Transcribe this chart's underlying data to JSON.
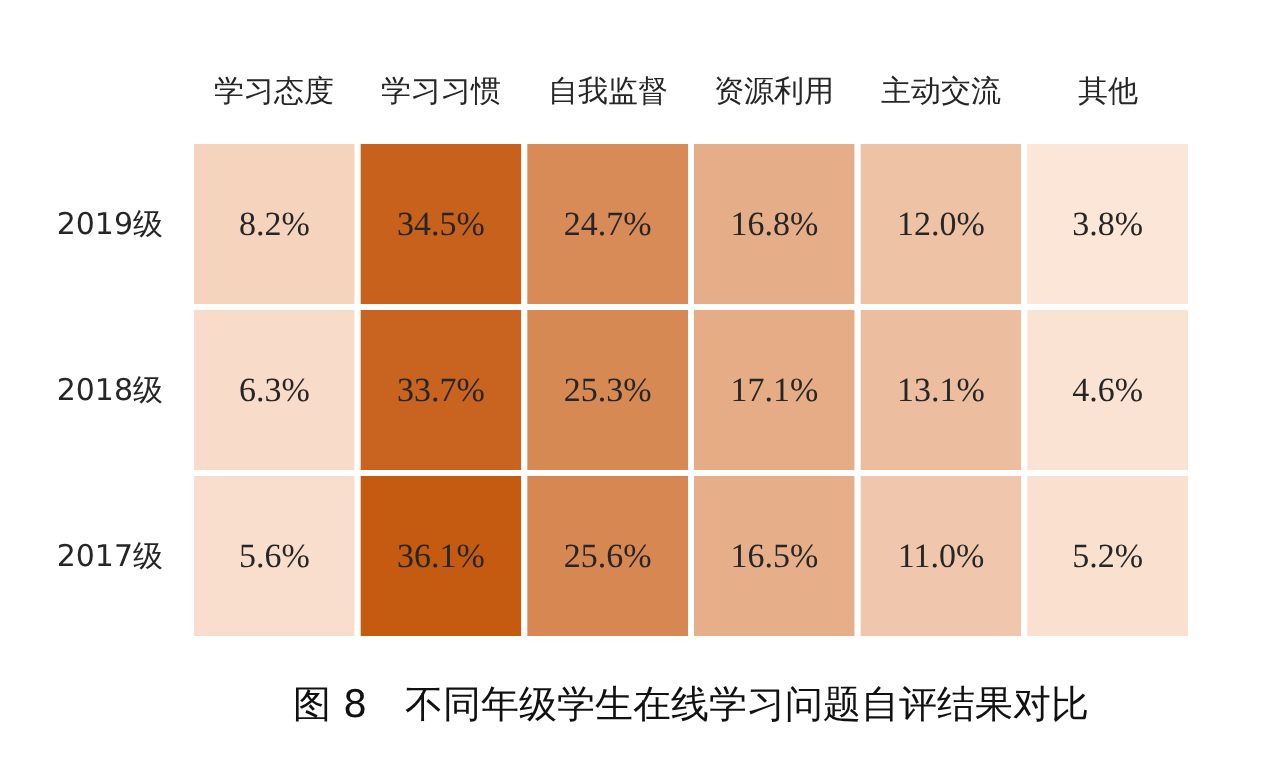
{
  "chart_data": {
    "type": "heatmap",
    "title": "图 8　不同年级学生在线学习问题自评结果对比",
    "categories": [
      "学习态度",
      "学习习惯",
      "自我监督",
      "资源利用",
      "主动交流",
      "其他"
    ],
    "y_categories": [
      "2019级",
      "2018级",
      "2017级"
    ],
    "cells": [
      [
        8.2,
        34.5,
        24.7,
        16.8,
        12.0,
        3.8
      ],
      [
        6.3,
        33.7,
        25.3,
        17.1,
        13.1,
        4.6
      ],
      [
        5.6,
        36.1,
        25.6,
        16.5,
        11.0,
        5.2
      ]
    ],
    "cell_labels": [
      [
        "8.2%",
        "34.5%",
        "24.7%",
        "16.8%",
        "12.0%",
        "3.8%"
      ],
      [
        "6.3%",
        "33.7%",
        "25.3%",
        "17.1%",
        "13.1%",
        "4.6%"
      ],
      [
        "5.6%",
        "36.1%",
        "25.6%",
        "16.5%",
        "11.0%",
        "5.2%"
      ]
    ],
    "colors": [
      "#fce6d8",
      "#c55a11"
    ]
  }
}
